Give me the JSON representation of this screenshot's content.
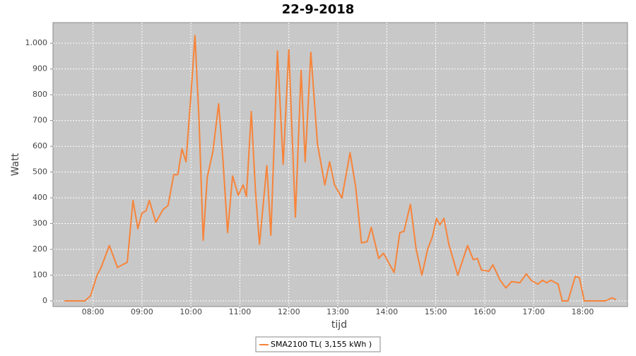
{
  "chart_data": {
    "type": "line",
    "title": "22-9-2018",
    "x_label": "tijd",
    "y_label": "Watt",
    "x": [
      "07:25",
      "07:50",
      "07:57",
      "08:05",
      "08:10",
      "08:20",
      "08:30",
      "08:42",
      "08:49",
      "08:55",
      "09:00",
      "09:05",
      "09:09",
      "09:17",
      "09:26",
      "09:32",
      "09:39",
      "09:44",
      "09:49",
      "09:54",
      "10:00",
      "10:05",
      "10:10",
      "10:15",
      "10:20",
      "10:27",
      "10:34",
      "10:39",
      "10:45",
      "10:51",
      "10:58",
      "11:04",
      "11:08",
      "11:14",
      "11:19",
      "11:24",
      "11:33",
      "11:38",
      "11:46",
      "11:53",
      "12:00",
      "12:08",
      "12:15",
      "12:20",
      "12:27",
      "12:35",
      "12:44",
      "12:50",
      "12:56",
      "13:05",
      "13:15",
      "13:22",
      "13:29",
      "13:36",
      "13:41",
      "13:50",
      "13:56",
      "14:02",
      "14:09",
      "14:16",
      "14:21",
      "14:29",
      "14:36",
      "14:43",
      "14:50",
      "14:56",
      "15:01",
      "15:05",
      "15:10",
      "15:16",
      "15:27",
      "15:39",
      "15:46",
      "15:51",
      "15:56",
      "16:05",
      "16:10",
      "16:19",
      "16:26",
      "16:33",
      "16:43",
      "16:51",
      "16:57",
      "17:05",
      "17:11",
      "17:16",
      "17:21",
      "17:30",
      "17:35",
      "17:42",
      "17:51",
      "17:56",
      "18:02",
      "18:28",
      "18:36",
      "18:41"
    ],
    "series": [
      {
        "name": "SMA2100 TL( 3,155 kWh )",
        "color": "#f7843a",
        "values": [
          0,
          0,
          20,
          100,
          130,
          215,
          130,
          150,
          390,
          280,
          340,
          350,
          390,
          305,
          355,
          370,
          490,
          490,
          590,
          540,
          800,
          1030,
          700,
          235,
          480,
          580,
          765,
          560,
          265,
          485,
          410,
          450,
          405,
          735,
          430,
          220,
          525,
          255,
          970,
          530,
          975,
          325,
          895,
          540,
          965,
          610,
          450,
          540,
          450,
          400,
          575,
          440,
          225,
          230,
          285,
          165,
          185,
          150,
          110,
          265,
          270,
          375,
          200,
          100,
          200,
          250,
          320,
          295,
          320,
          220,
          100,
          215,
          160,
          165,
          120,
          115,
          140,
          80,
          50,
          75,
          70,
          105,
          80,
          65,
          80,
          70,
          80,
          65,
          0,
          0,
          95,
          90,
          0,
          0,
          12,
          5
        ]
      }
    ],
    "xlim": [
      "07:11",
      "18:55"
    ],
    "xticks": [
      "08:00",
      "09:00",
      "10:00",
      "11:00",
      "12:00",
      "13:00",
      "14:00",
      "15:00",
      "16:00",
      "17:00",
      "18:00"
    ],
    "ylim": [
      -22,
      1080
    ],
    "yticks": [
      0,
      100,
      200,
      300,
      400,
      500,
      600,
      700,
      800,
      900,
      {
        "value": 1000,
        "label": "1.000"
      }
    ],
    "grid": true
  }
}
